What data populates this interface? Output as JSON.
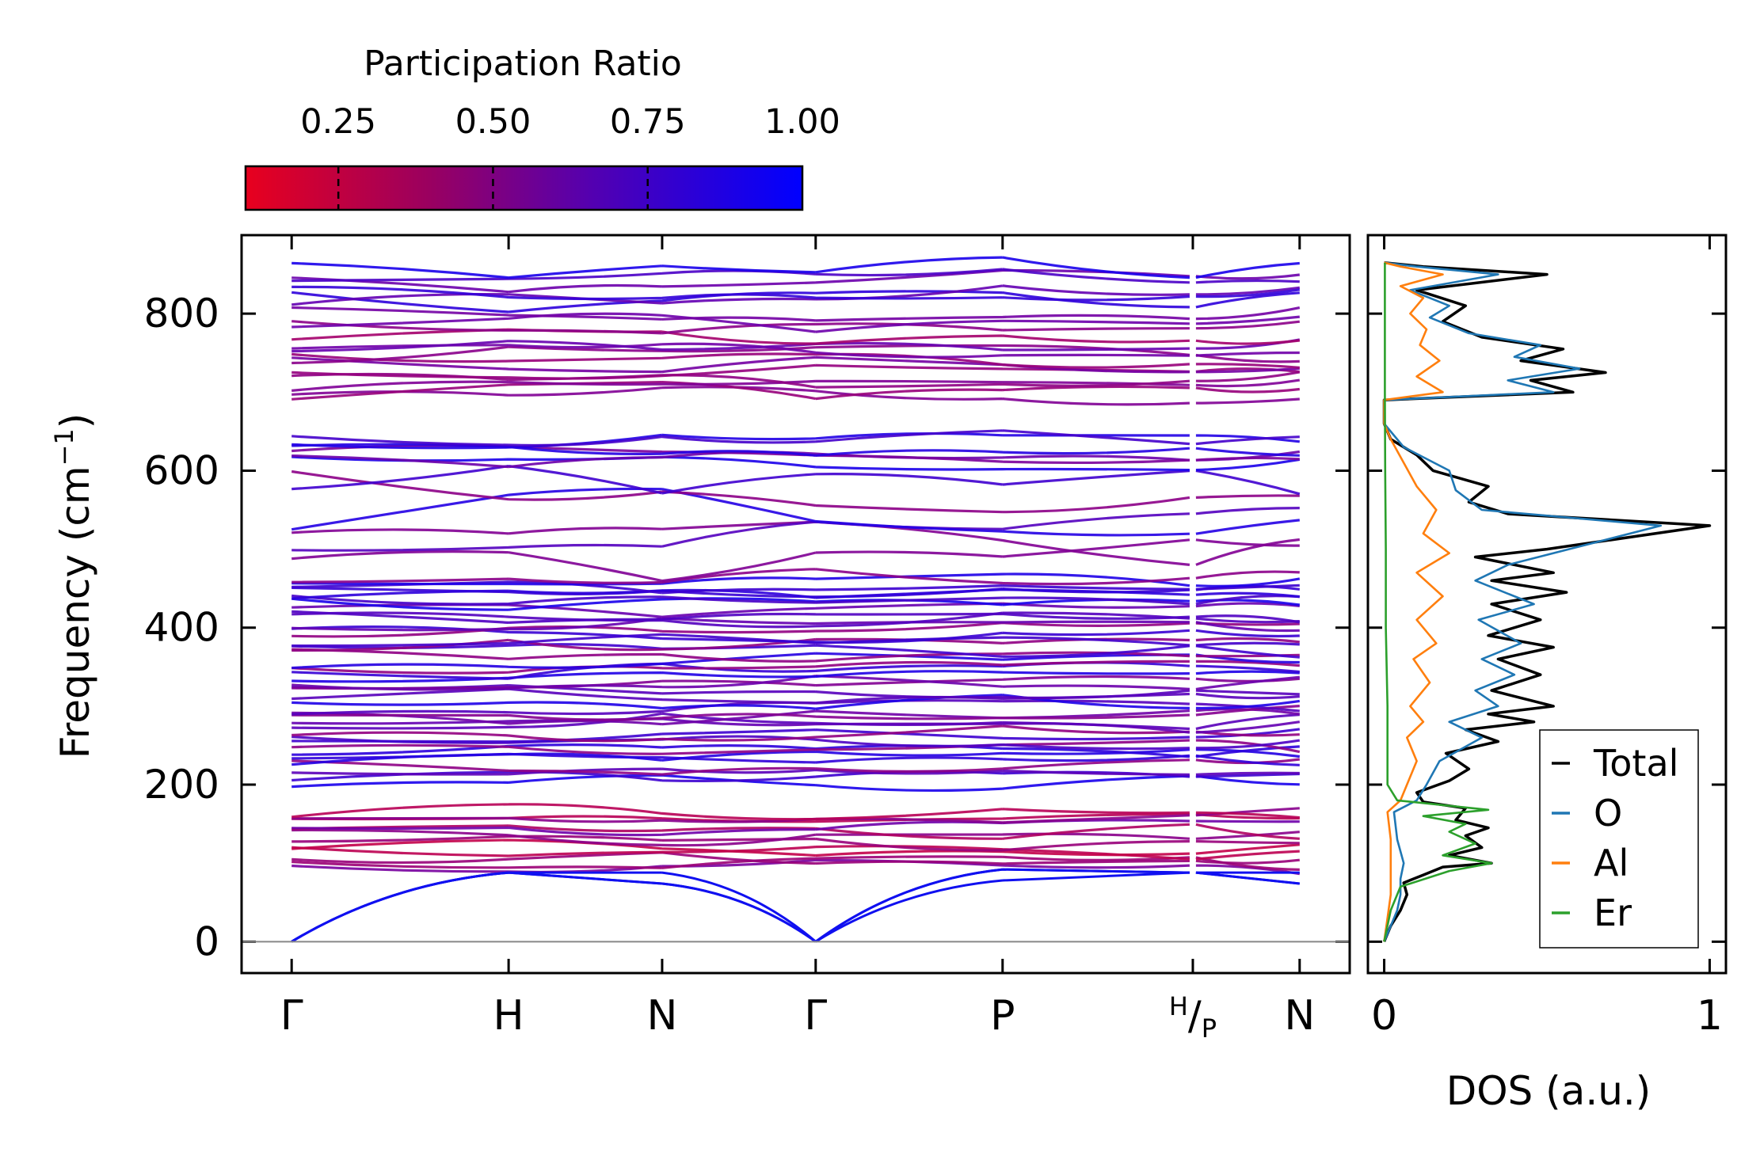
{
  "chart_data": [
    {
      "type": "colorbar",
      "label": "Participation Ratio",
      "range": [
        0.1,
        1.0
      ],
      "ticks": [
        0.25,
        0.5,
        0.75,
        1.0
      ],
      "tick_labels": [
        "0.25",
        "0.50",
        "0.75",
        "1.00"
      ],
      "colormap": [
        "#e8001e",
        "#0000ff"
      ]
    },
    {
      "type": "line",
      "title": "",
      "ylabel": "Frequency (cm⁻¹)",
      "ylabel_main": "Frequency (cm",
      "ylabel_sup": "−1",
      "ylabel_close": ")",
      "ylim": [
        -40,
        900
      ],
      "yticks": [
        0,
        200,
        400,
        600,
        800
      ],
      "ytick_labels": [
        "0",
        "200",
        "400",
        "600",
        "800"
      ],
      "kpoint_labels": [
        "Γ",
        "H",
        "N",
        "Γ",
        "P",
        "H/P",
        "N"
      ],
      "kpoint_positions": [
        0,
        1.3,
        2.22,
        3.14,
        4.26,
        5.4,
        6.04
      ],
      "xlim": [
        -0.3,
        6.34
      ],
      "break_label": {
        "top": "H",
        "sep": "/",
        "bottom": "P"
      },
      "acoustic_branches": [
        {
          "name": "acoustic-1",
          "points": [
            [
              0,
              0
            ],
            [
              1.3,
              88
            ],
            [
              2.22,
              74
            ],
            [
              3.14,
              0
            ],
            [
              4.26,
              92
            ],
            [
              5.4,
              88
            ],
            [
              6.04,
              74
            ]
          ]
        },
        {
          "name": "acoustic-2",
          "points": [
            [
              0,
              0
            ],
            [
              1.3,
              88
            ],
            [
              2.22,
              74
            ],
            [
              3.14,
              0
            ],
            [
              4.26,
              78
            ],
            [
              5.4,
              88
            ],
            [
              6.04,
              74
            ]
          ]
        },
        {
          "name": "acoustic-3",
          "points": [
            [
              0,
              0
            ],
            [
              1.3,
              88
            ],
            [
              2.22,
              88
            ],
            [
              3.14,
              0
            ],
            [
              4.26,
              92
            ],
            [
              5.4,
              88
            ],
            [
              6.04,
              88
            ]
          ]
        }
      ],
      "optical_band_ranges": [
        [
          90,
          170
        ],
        [
          200,
          470
        ],
        [
          480,
          600
        ],
        [
          605,
          645
        ],
        [
          690,
          800
        ],
        [
          810,
          865
        ]
      ],
      "band_color_note": "branches colored by participation ratio"
    },
    {
      "type": "line",
      "xlabel": "DOS (a.u.)",
      "xlim": [
        -0.05,
        1.05
      ],
      "xticks": [
        0,
        1
      ],
      "xtick_labels": [
        "0",
        "1"
      ],
      "ylim": [
        -40,
        900
      ],
      "legend": {
        "position": "lower-right",
        "entries": [
          {
            "name": "Total",
            "color": "#000000"
          },
          {
            "name": "O",
            "color": "#1f77b4"
          },
          {
            "name": "Al",
            "color": "#ff7f0e"
          },
          {
            "name": "Er",
            "color": "#2ca02c"
          }
        ]
      },
      "series": [
        {
          "name": "Total",
          "color": "#000000",
          "points": [
            [
              0,
              0
            ],
            [
              0.02,
              20
            ],
            [
              0.05,
              40
            ],
            [
              0.07,
              60
            ],
            [
              0.06,
              75
            ],
            [
              0.12,
              85
            ],
            [
              0.18,
              95
            ],
            [
              0.33,
              100
            ],
            [
              0.2,
              110
            ],
            [
              0.3,
              120
            ],
            [
              0.25,
              135
            ],
            [
              0.32,
              145
            ],
            [
              0.22,
              155
            ],
            [
              0.25,
              170
            ],
            [
              0.12,
              178
            ],
            [
              0.1,
              190
            ],
            [
              0.2,
              205
            ],
            [
              0.26,
              220
            ],
            [
              0.19,
              240
            ],
            [
              0.35,
              255
            ],
            [
              0.25,
              270
            ],
            [
              0.46,
              280
            ],
            [
              0.32,
              290
            ],
            [
              0.52,
              300
            ],
            [
              0.33,
              320
            ],
            [
              0.48,
              340
            ],
            [
              0.35,
              360
            ],
            [
              0.52,
              375
            ],
            [
              0.32,
              390
            ],
            [
              0.48,
              410
            ],
            [
              0.33,
              430
            ],
            [
              0.56,
              445
            ],
            [
              0.33,
              460
            ],
            [
              0.52,
              470
            ],
            [
              0.28,
              490
            ],
            [
              0.5,
              500
            ],
            [
              1.0,
              530
            ],
            [
              0.38,
              545
            ],
            [
              0.26,
              560
            ],
            [
              0.32,
              580
            ],
            [
              0.15,
              600
            ],
            [
              0.1,
              620
            ],
            [
              0.02,
              640
            ],
            [
              0,
              660
            ],
            [
              0,
              690
            ],
            [
              0.58,
              700
            ],
            [
              0.45,
              715
            ],
            [
              0.68,
              725
            ],
            [
              0.42,
              740
            ],
            [
              0.55,
              755
            ],
            [
              0.3,
              770
            ],
            [
              0.18,
              790
            ],
            [
              0.25,
              810
            ],
            [
              0.1,
              830
            ],
            [
              0.5,
              850
            ],
            [
              0.12,
              860
            ],
            [
              0,
              865
            ]
          ]
        },
        {
          "name": "O",
          "color": "#1f77b4",
          "points": [
            [
              0,
              0
            ],
            [
              0.02,
              20
            ],
            [
              0.04,
              40
            ],
            [
              0.05,
              60
            ],
            [
              0.05,
              80
            ],
            [
              0.06,
              100
            ],
            [
              0.04,
              130
            ],
            [
              0.03,
              165
            ],
            [
              0.1,
              180
            ],
            [
              0.13,
              200
            ],
            [
              0.17,
              230
            ],
            [
              0.3,
              260
            ],
            [
              0.2,
              280
            ],
            [
              0.35,
              300
            ],
            [
              0.28,
              320
            ],
            [
              0.4,
              340
            ],
            [
              0.3,
              360
            ],
            [
              0.42,
              380
            ],
            [
              0.29,
              410
            ],
            [
              0.46,
              430
            ],
            [
              0.28,
              460
            ],
            [
              0.38,
              480
            ],
            [
              0.85,
              530
            ],
            [
              0.3,
              550
            ],
            [
              0.22,
              575
            ],
            [
              0.2,
              600
            ],
            [
              0.06,
              630
            ],
            [
              0,
              660
            ],
            [
              0,
              690
            ],
            [
              0.52,
              700
            ],
            [
              0.38,
              715
            ],
            [
              0.6,
              730
            ],
            [
              0.4,
              745
            ],
            [
              0.48,
              760
            ],
            [
              0.26,
              775
            ],
            [
              0.14,
              795
            ],
            [
              0.2,
              810
            ],
            [
              0.08,
              830
            ],
            [
              0.35,
              850
            ],
            [
              0.1,
              860
            ],
            [
              0,
              865
            ]
          ]
        },
        {
          "name": "Al",
          "color": "#ff7f0e",
          "points": [
            [
              0,
              0
            ],
            [
              0.01,
              30
            ],
            [
              0.02,
              60
            ],
            [
              0.02,
              90
            ],
            [
              0.02,
              130
            ],
            [
              0.01,
              165
            ],
            [
              0.05,
              180
            ],
            [
              0.07,
              200
            ],
            [
              0.1,
              230
            ],
            [
              0.07,
              260
            ],
            [
              0.12,
              280
            ],
            [
              0.08,
              300
            ],
            [
              0.14,
              330
            ],
            [
              0.09,
              360
            ],
            [
              0.16,
              380
            ],
            [
              0.1,
              410
            ],
            [
              0.18,
              440
            ],
            [
              0.1,
              470
            ],
            [
              0.2,
              495
            ],
            [
              0.12,
              520
            ],
            [
              0.16,
              550
            ],
            [
              0.1,
              580
            ],
            [
              0.06,
              610
            ],
            [
              0.02,
              640
            ],
            [
              0,
              660
            ],
            [
              0,
              690
            ],
            [
              0.18,
              700
            ],
            [
              0.1,
              720
            ],
            [
              0.17,
              740
            ],
            [
              0.11,
              760
            ],
            [
              0.13,
              780
            ],
            [
              0.08,
              800
            ],
            [
              0.12,
              820
            ],
            [
              0.05,
              835
            ],
            [
              0.18,
              850
            ],
            [
              0.05,
              860
            ],
            [
              0,
              865
            ]
          ]
        },
        {
          "name": "Er",
          "color": "#2ca02c",
          "points": [
            [
              0,
              0
            ],
            [
              0.02,
              40
            ],
            [
              0.05,
              70
            ],
            [
              0.2,
              90
            ],
            [
              0.33,
              100
            ],
            [
              0.18,
              110
            ],
            [
              0.28,
              125
            ],
            [
              0.2,
              140
            ],
            [
              0.25,
              150
            ],
            [
              0.12,
              160
            ],
            [
              0.32,
              168
            ],
            [
              0.04,
              180
            ],
            [
              0.01,
              200
            ],
            [
              0.01,
              300
            ],
            [
              0.005,
              400
            ],
            [
              0.005,
              500
            ],
            [
              0.003,
              600
            ],
            [
              0.002,
              700
            ],
            [
              0.002,
              800
            ],
            [
              0.002,
              865
            ]
          ]
        }
      ]
    }
  ]
}
